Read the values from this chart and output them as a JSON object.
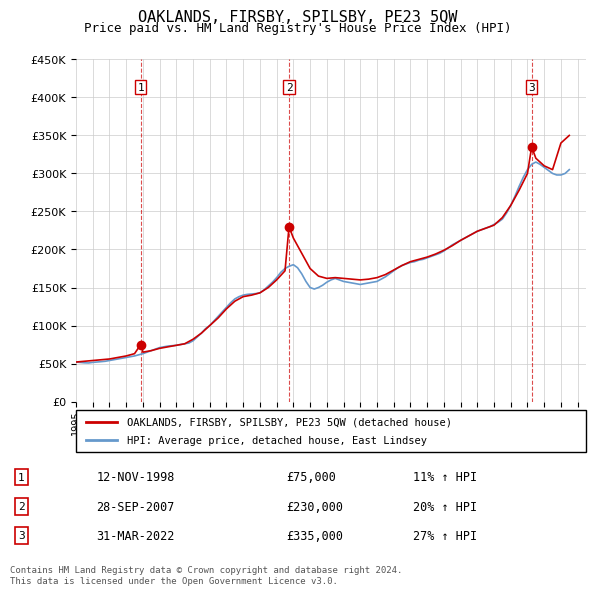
{
  "title": "OAKLANDS, FIRSBY, SPILSBY, PE23 5QW",
  "subtitle": "Price paid vs. HM Land Registry's House Price Index (HPI)",
  "legend_line1": "OAKLANDS, FIRSBY, SPILSBY, PE23 5QW (detached house)",
  "legend_line2": "HPI: Average price, detached house, East Lindsey",
  "sale_dates": [
    1998.87,
    2007.74,
    2022.25
  ],
  "sale_prices": [
    75000,
    230000,
    335000
  ],
  "sale_labels": [
    "1",
    "2",
    "3"
  ],
  "sale_info": [
    {
      "num": "1",
      "date": "12-NOV-1998",
      "price": "£75,000",
      "hpi": "11% ↑ HPI"
    },
    {
      "num": "2",
      "date": "28-SEP-2007",
      "price": "£230,000",
      "hpi": "20% ↑ HPI"
    },
    {
      "num": "3",
      "date": "31-MAR-2022",
      "price": "£335,000",
      "hpi": "27% ↑ HPI"
    }
  ],
  "footer": "Contains HM Land Registry data © Crown copyright and database right 2024.\nThis data is licensed under the Open Government Licence v3.0.",
  "hpi_color": "#6699cc",
  "price_color": "#cc0000",
  "vline_color": "#cc0000",
  "ylim": [
    0,
    450000
  ],
  "xlim": [
    1995.0,
    2025.5
  ],
  "background_color": "#ffffff",
  "grid_color": "#cccccc",
  "hpi_data": {
    "years": [
      1995.0,
      1995.25,
      1995.5,
      1995.75,
      1996.0,
      1996.25,
      1996.5,
      1996.75,
      1997.0,
      1997.25,
      1997.5,
      1997.75,
      1998.0,
      1998.25,
      1998.5,
      1998.75,
      1999.0,
      1999.25,
      1999.5,
      1999.75,
      2000.0,
      2000.25,
      2000.5,
      2000.75,
      2001.0,
      2001.25,
      2001.5,
      2001.75,
      2002.0,
      2002.25,
      2002.5,
      2002.75,
      2003.0,
      2003.25,
      2003.5,
      2003.75,
      2004.0,
      2004.25,
      2004.5,
      2004.75,
      2005.0,
      2005.25,
      2005.5,
      2005.75,
      2006.0,
      2006.25,
      2006.5,
      2006.75,
      2007.0,
      2007.25,
      2007.5,
      2007.75,
      2008.0,
      2008.25,
      2008.5,
      2008.75,
      2009.0,
      2009.25,
      2009.5,
      2009.75,
      2010.0,
      2010.25,
      2010.5,
      2010.75,
      2011.0,
      2011.25,
      2011.5,
      2011.75,
      2012.0,
      2012.25,
      2012.5,
      2012.75,
      2013.0,
      2013.25,
      2013.5,
      2013.75,
      2014.0,
      2014.25,
      2014.5,
      2014.75,
      2015.0,
      2015.25,
      2015.5,
      2015.75,
      2016.0,
      2016.25,
      2016.5,
      2016.75,
      2017.0,
      2017.25,
      2017.5,
      2017.75,
      2018.0,
      2018.25,
      2018.5,
      2018.75,
      2019.0,
      2019.25,
      2019.5,
      2019.75,
      2020.0,
      2020.25,
      2020.5,
      2020.75,
      2021.0,
      2021.25,
      2021.5,
      2021.75,
      2022.0,
      2022.25,
      2022.5,
      2022.75,
      2023.0,
      2023.25,
      2023.5,
      2023.75,
      2024.0,
      2024.25,
      2024.5
    ],
    "values": [
      52000,
      51500,
      51000,
      50800,
      51500,
      52000,
      52500,
      53000,
      54000,
      55000,
      56000,
      57000,
      58000,
      59000,
      60000,
      61500,
      63000,
      65000,
      67000,
      69000,
      71000,
      72000,
      73000,
      73500,
      74000,
      75000,
      76000,
      77000,
      80000,
      85000,
      90000,
      96000,
      100000,
      106000,
      112000,
      118000,
      124000,
      130000,
      135000,
      138000,
      140000,
      141000,
      141500,
      142000,
      143000,
      147000,
      152000,
      157000,
      163000,
      170000,
      175000,
      178000,
      180000,
      176000,
      168000,
      158000,
      150000,
      148000,
      150000,
      153000,
      157000,
      160000,
      162000,
      160000,
      158000,
      157000,
      156000,
      155000,
      154000,
      155000,
      156000,
      157000,
      158000,
      161000,
      164000,
      168000,
      172000,
      176000,
      179000,
      181000,
      183000,
      184000,
      186000,
      187000,
      189000,
      191000,
      193000,
      195000,
      198000,
      202000,
      206000,
      209000,
      212000,
      215000,
      218000,
      221000,
      224000,
      226000,
      228000,
      230000,
      233000,
      236000,
      240000,
      248000,
      258000,
      270000,
      283000,
      295000,
      305000,
      312000,
      315000,
      312000,
      308000,
      304000,
      300000,
      298000,
      298000,
      300000,
      305000
    ]
  },
  "price_data": {
    "years": [
      1995.0,
      1995.5,
      1996.0,
      1996.5,
      1997.0,
      1997.5,
      1998.0,
      1998.5,
      1998.87,
      1999.0,
      1999.5,
      2000.0,
      2000.5,
      2001.0,
      2001.5,
      2002.0,
      2002.5,
      2003.0,
      2003.5,
      2004.0,
      2004.5,
      2005.0,
      2005.5,
      2006.0,
      2006.5,
      2007.0,
      2007.5,
      2007.74,
      2008.0,
      2008.5,
      2009.0,
      2009.5,
      2010.0,
      2010.5,
      2011.0,
      2011.5,
      2012.0,
      2012.5,
      2013.0,
      2013.5,
      2014.0,
      2014.5,
      2015.0,
      2015.5,
      2016.0,
      2016.5,
      2017.0,
      2017.5,
      2018.0,
      2018.5,
      2019.0,
      2019.5,
      2020.0,
      2020.5,
      2021.0,
      2021.5,
      2022.0,
      2022.25,
      2022.5,
      2023.0,
      2023.5,
      2024.0,
      2024.5
    ],
    "values": [
      52000,
      53000,
      54000,
      55000,
      56000,
      58000,
      60000,
      63000,
      75000,
      65000,
      67000,
      70000,
      72000,
      74000,
      76000,
      82000,
      90000,
      100000,
      110000,
      122000,
      132000,
      138000,
      140000,
      143000,
      150000,
      160000,
      172000,
      230000,
      215000,
      195000,
      175000,
      165000,
      162000,
      163000,
      162000,
      161000,
      160000,
      161000,
      163000,
      167000,
      173000,
      179000,
      184000,
      187000,
      190000,
      194000,
      199000,
      205000,
      212000,
      218000,
      224000,
      228000,
      232000,
      242000,
      258000,
      278000,
      300000,
      335000,
      320000,
      310000,
      305000,
      340000,
      350000
    ]
  }
}
